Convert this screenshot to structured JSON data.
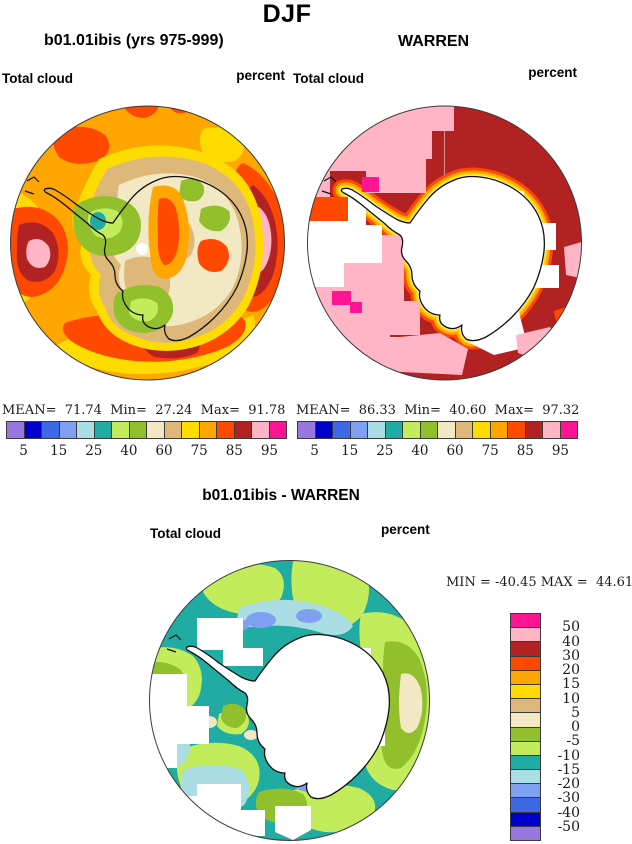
{
  "figure_title": "DJF",
  "top_left_panel": {
    "subtitle": "b01.01ibis (yrs 975-999)",
    "field_label": "Total cloud",
    "units_label": "percent",
    "stats_line": "MEAN=  71.74  Min=  27.24  Max=  91.78",
    "mean": 71.74,
    "min": 27.24,
    "max": 91.78
  },
  "top_right_panel": {
    "subtitle": "WARREN",
    "field_label": "Total cloud",
    "units_label": "percent",
    "stats_line": "MEAN=  86.33  Min=  40.60  Max=  97.32",
    "mean": 86.33,
    "min": 40.6,
    "max": 97.32
  },
  "diff_panel": {
    "subtitle": "b01.01ibis - WARREN",
    "field_label": "Total cloud",
    "units_label": "percent",
    "stats_line": "MIN = -40.45 MAX =  44.61",
    "min": -40.45,
    "max": 44.61
  },
  "colorbar": {
    "palette_low_to_high": [
      "#9878E0",
      "#0000CC",
      "#3D68E6",
      "#7FA0F0",
      "#ABDEE4",
      "#20ABA3",
      "#C2EC5C",
      "#92C02C",
      "#F2E9C4",
      "#DDB878",
      "#FFDC00",
      "#FFA600",
      "#FF4800",
      "#B32222",
      "#FFB5C5",
      "#FF1493"
    ],
    "top_tick_labels": [
      "5",
      "15",
      "25",
      "40",
      "60",
      "75",
      "85",
      "95"
    ],
    "top_tick_boundary_indices": [
      1,
      3,
      5,
      7,
      9,
      11,
      13,
      15
    ],
    "diff_tick_labels_top_to_bottom": [
      "50",
      "40",
      "30",
      "20",
      "15",
      "10",
      "5",
      "0",
      "-5",
      "-10",
      "-15",
      "-20",
      "-30",
      "-40",
      "-50"
    ]
  },
  "map_colors": {
    "model_ocean": "#FFA600",
    "obs_ocean": "#B32222",
    "diff_background": "#20ABA3",
    "continent": "#FFFFFF",
    "coastline": "#111111"
  }
}
